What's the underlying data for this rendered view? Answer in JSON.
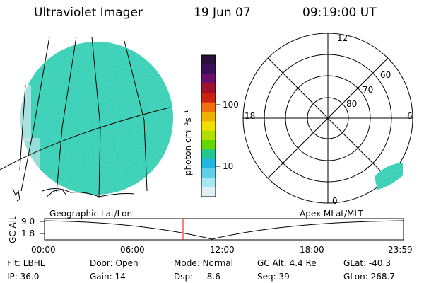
{
  "header": {
    "title": "Ultraviolet Imager",
    "date": "19 Jun 07",
    "time": "09:19:00 UT"
  },
  "colorbar": {
    "label": "photon cm⁻²s⁻¹",
    "ticks": [
      "100",
      "10"
    ],
    "colors": [
      "#2a0f3a",
      "#3a0f5a",
      "#6a0f6a",
      "#a0102a",
      "#cc2010",
      "#f07010",
      "#f0b000",
      "#f0e000",
      "#b0e000",
      "#60d800",
      "#20c890",
      "#20b8e0",
      "#60d0e8",
      "#a8e8f0",
      "#e0f0f4"
    ]
  },
  "left_panel": {
    "label": "Geographic Lat/Lon",
    "fill_color": "#3ccfb8"
  },
  "right_panel": {
    "label": "Apex MLat/MLT",
    "mlt_labels": {
      "top": "12",
      "left": "18",
      "right": "6",
      "bottom": "0"
    },
    "lat_labels": [
      "60",
      "70",
      "80"
    ]
  },
  "timeline": {
    "ylabel": "GC Alt",
    "yticks": [
      "9.0",
      "1.8"
    ],
    "xticks": [
      "00:00",
      "06:00",
      "12:00",
      "18:00",
      "23:59"
    ],
    "marker_time": "09:19",
    "marker_color": "#ff0000"
  },
  "info": {
    "flt": "Flt: LBHL",
    "ip": "IP: 36.0",
    "door": "Door: Open",
    "gain": "Gain: 14",
    "mode": "Mode: Normal",
    "dsp": "Dsp:    -8.6",
    "gc_alt": "GC Alt: 4.4 Re",
    "seq": "Seq: 39",
    "glat": "GLat: -40.3",
    "glon": "GLon: 268.7"
  }
}
